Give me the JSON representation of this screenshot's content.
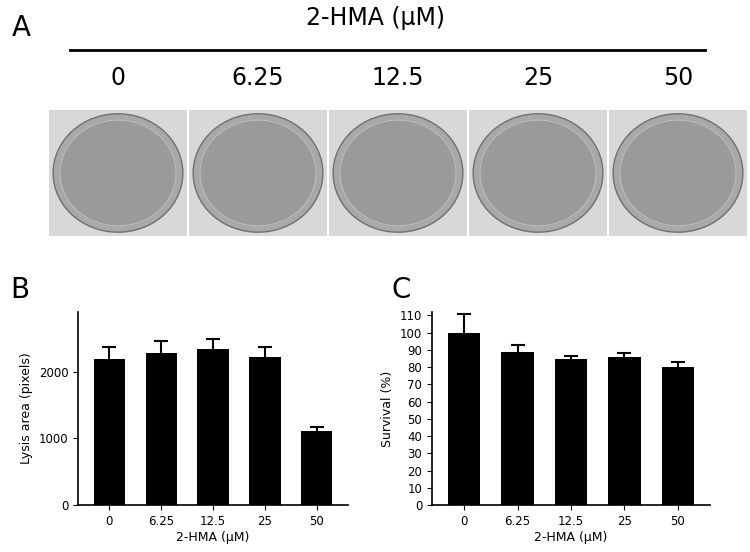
{
  "figure": {
    "panel": "A",
    "title": "2-HMA (μM)",
    "wells": [
      "0",
      "6.25",
      "12.5",
      "25",
      "50"
    ]
  },
  "chart_data": [
    {
      "type": "bar",
      "panel": "B",
      "categories": [
        "0",
        "6.25",
        "12.5",
        "25",
        "50"
      ],
      "values": [
        2200,
        2280,
        2340,
        2230,
        1110
      ],
      "errors": [
        170,
        180,
        160,
        150,
        60
      ],
      "x_label": "2-HMA (μM)",
      "y_label": "Lysis area (pixels)",
      "ylim": [
        0,
        2900
      ],
      "yticks": [
        0,
        1000,
        2000
      ],
      "color": "#000000",
      "grid": false
    },
    {
      "type": "bar",
      "panel": "C",
      "categories": [
        "0",
        "6.25",
        "12.5",
        "25",
        "50"
      ],
      "values": [
        100,
        89,
        85,
        86,
        80
      ],
      "errors": [
        11,
        4,
        1.5,
        2,
        3
      ],
      "x_label": "2-HMA (μM)",
      "y_label": "Survival (%)",
      "ylim": [
        0,
        112
      ],
      "yticks": [
        0,
        10,
        20,
        30,
        40,
        50,
        60,
        70,
        80,
        90,
        100,
        110
      ],
      "color": "#000000",
      "grid": false
    }
  ]
}
